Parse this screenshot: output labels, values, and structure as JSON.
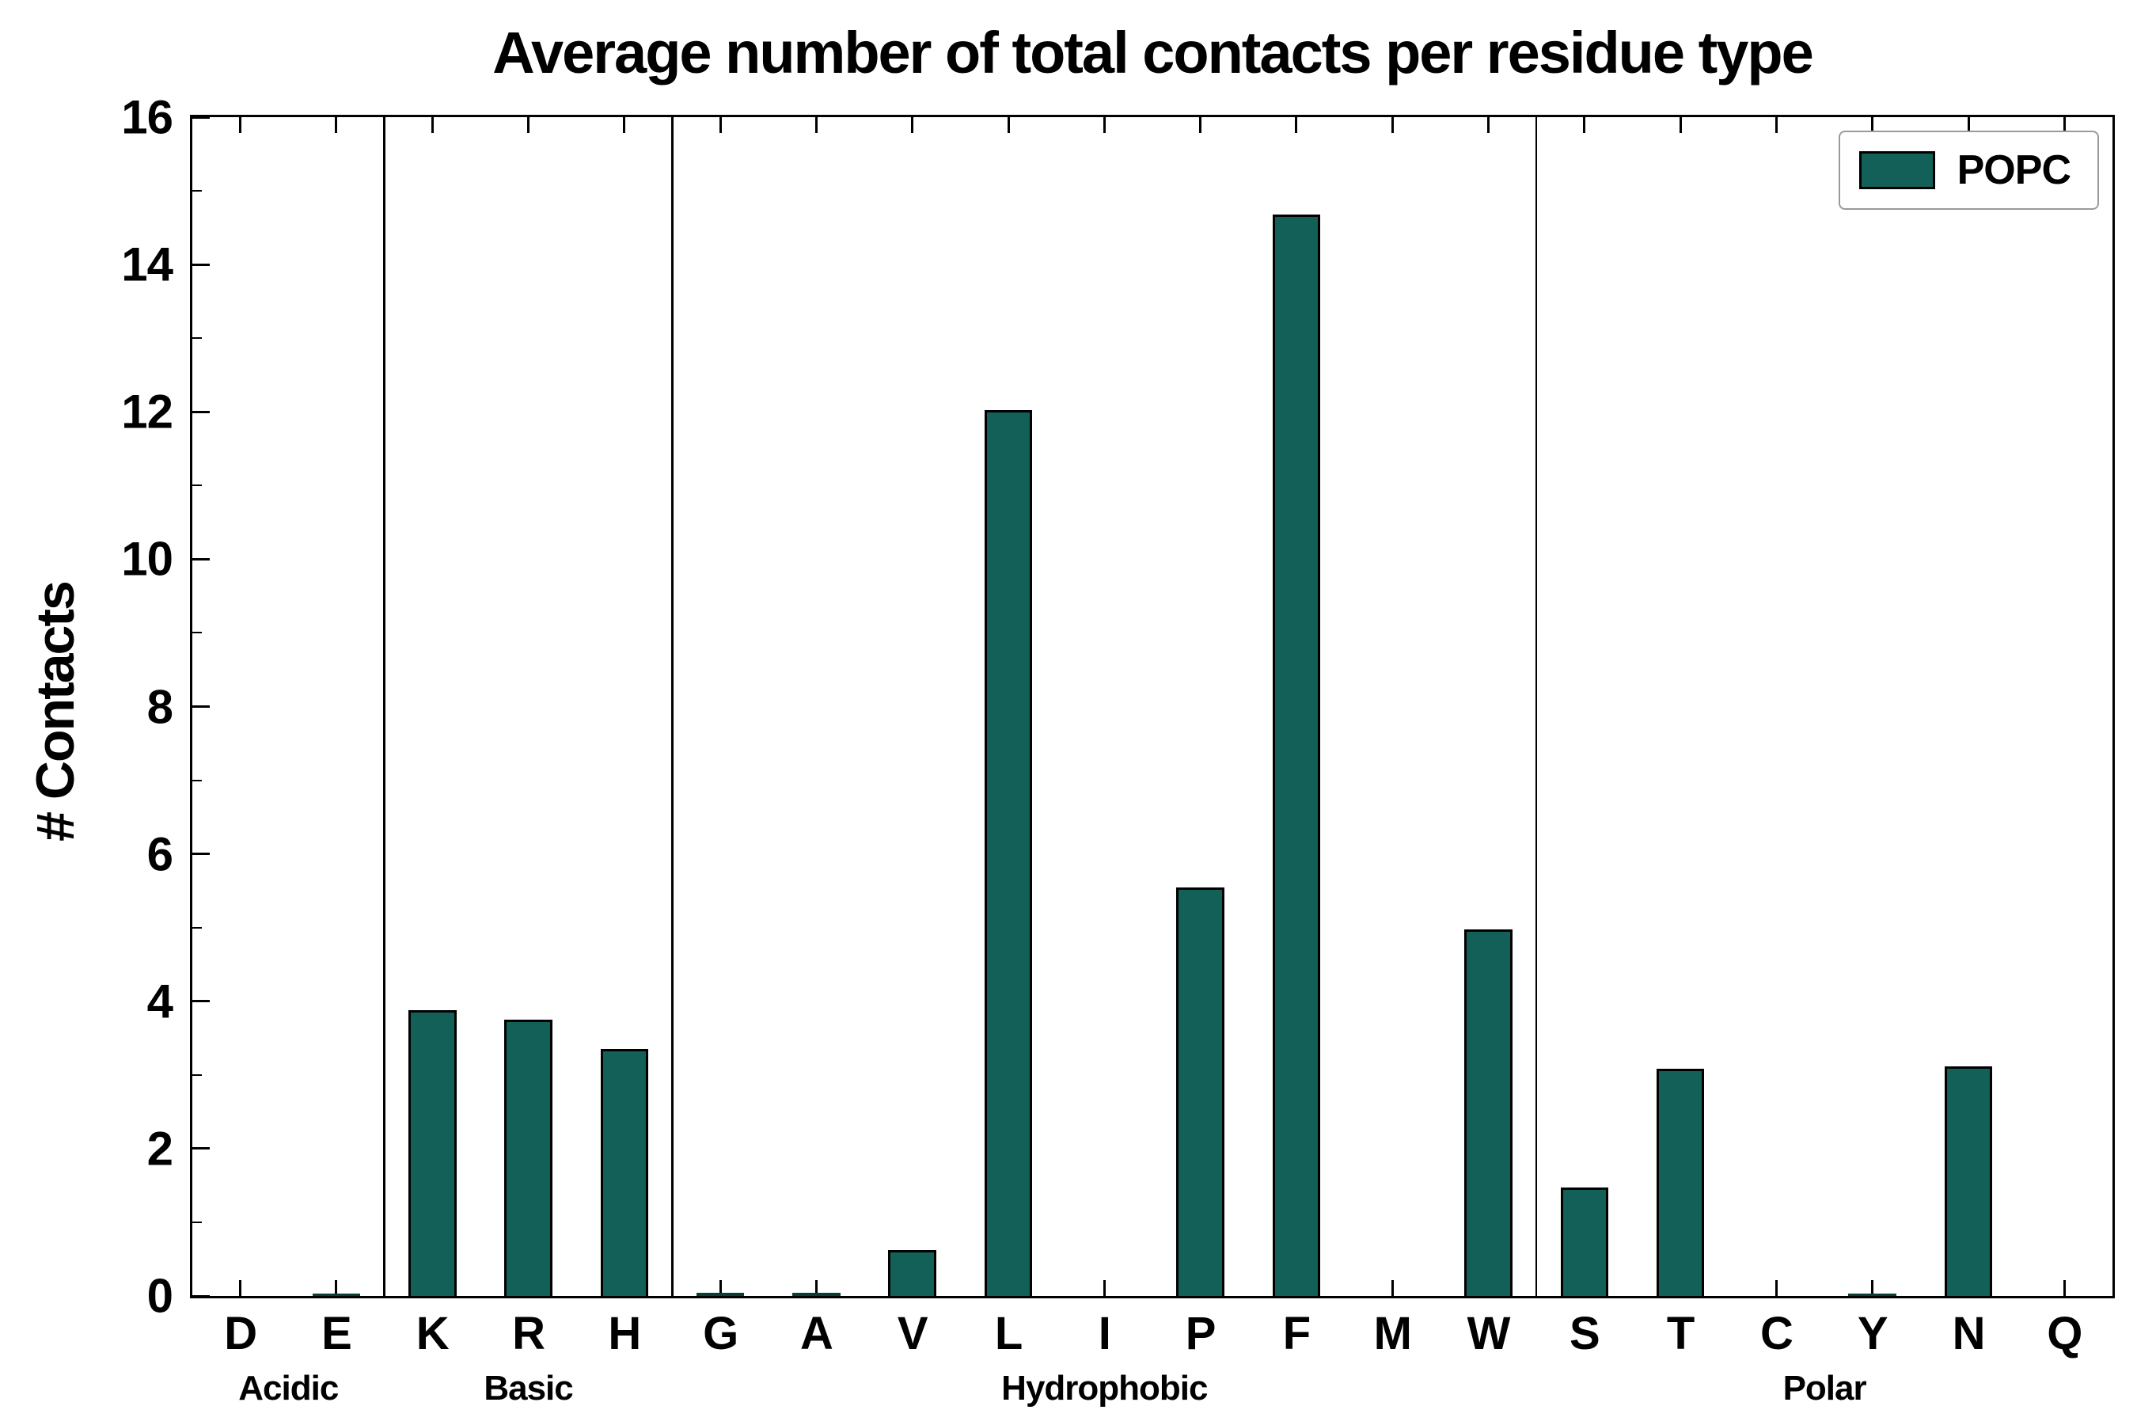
{
  "chart_data": {
    "type": "bar",
    "title": "Average number of total contacts per residue type",
    "ylabel": "# Contacts",
    "xlabel": "",
    "ylim": [
      0,
      16
    ],
    "yticks": [
      0,
      2,
      4,
      6,
      8,
      10,
      12,
      14,
      16
    ],
    "legend": [
      "POPC"
    ],
    "bar_color": "#136058",
    "grid": false,
    "legend_position": "upper right",
    "groups": [
      {
        "label": "Acidic",
        "categories": [
          "D",
          "E"
        ],
        "values": [
          0.0,
          0.03
        ]
      },
      {
        "label": "Basic",
        "categories": [
          "K",
          "R",
          "H"
        ],
        "values": [
          3.88,
          3.75,
          3.35
        ]
      },
      {
        "label": "Hydrophobic",
        "categories": [
          "G",
          "A",
          "V",
          "L",
          "I",
          "P",
          "F",
          "M",
          "W"
        ],
        "values": [
          0.04,
          0.04,
          0.62,
          12.02,
          0.0,
          5.55,
          14.68,
          0.0,
          4.97
        ]
      },
      {
        "label": "Polar",
        "categories": [
          "S",
          "T",
          "C",
          "Y",
          "N",
          "Q"
        ],
        "values": [
          1.47,
          3.08,
          0.0,
          0.03,
          3.12,
          0.0
        ]
      }
    ]
  }
}
